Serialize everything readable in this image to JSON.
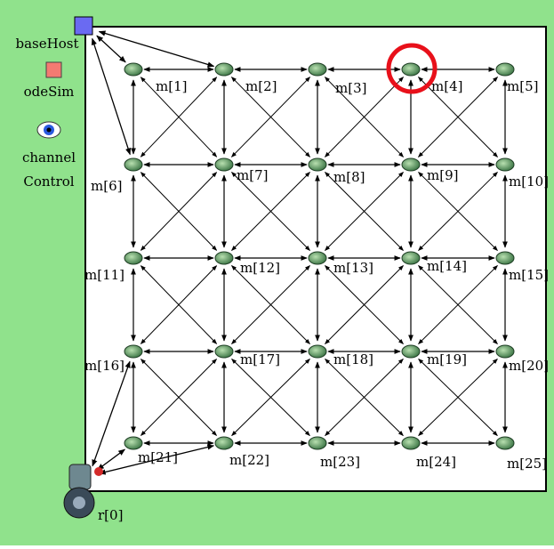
{
  "side": {
    "base_host": "baseHost",
    "ode_sim": "odeSim",
    "channel_control": [
      "channel",
      "Control"
    ]
  },
  "nodes": [
    {
      "label": "m[1]"
    },
    {
      "label": "m[2]"
    },
    {
      "label": "m[3]"
    },
    {
      "label": "m[4]"
    },
    {
      "label": "m[5]"
    },
    {
      "label": "m[6]"
    },
    {
      "label": "m[7]"
    },
    {
      "label": "m[8]"
    },
    {
      "label": "m[9]"
    },
    {
      "label": "m[10]"
    },
    {
      "label": "m[11]"
    },
    {
      "label": "m[12]"
    },
    {
      "label": "m[13]"
    },
    {
      "label": "m[14]"
    },
    {
      "label": "m[15]"
    },
    {
      "label": "m[16]"
    },
    {
      "label": "m[17]"
    },
    {
      "label": "m[18]"
    },
    {
      "label": "m[19]"
    },
    {
      "label": "m[20]"
    },
    {
      "label": "m[21]"
    },
    {
      "label": "m[22]"
    },
    {
      "label": "m[23]"
    },
    {
      "label": "m[24]"
    },
    {
      "label": "m[25]"
    }
  ],
  "robot": {
    "label": "r[0]"
  }
}
